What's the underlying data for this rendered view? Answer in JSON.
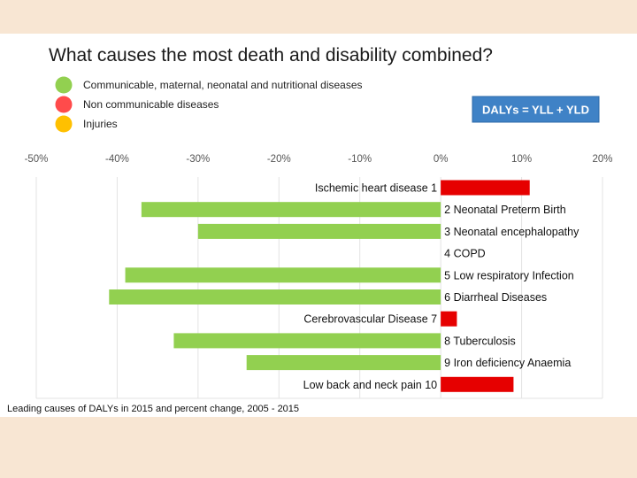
{
  "chart_data": {
    "type": "bar",
    "orientation": "horizontal",
    "title": "What causes the most death and disability combined?",
    "caption": "Leading causes of DALYs in 2015 and percent change, 2005 - 2015",
    "formula_box": "DALYs = YLL + YLD",
    "xlim": [
      -50,
      20
    ],
    "xticks": [
      -50,
      -40,
      -30,
      -20,
      -10,
      0,
      10,
      20
    ],
    "xtick_labels": [
      "-50%",
      "-40%",
      "-30%",
      "-20%",
      "-10%",
      "0%",
      "10%",
      "20%"
    ],
    "grid": true,
    "legend": [
      {
        "label": "Communicable, maternal, neonatal and nutritional diseases",
        "color": "#92d050"
      },
      {
        "label": "Non communicable diseases",
        "color": "#ff4b4b"
      },
      {
        "label": "Injuries",
        "color": "#ffc000"
      }
    ],
    "categories": [
      "Ischemic heart disease 1",
      "2 Neonatal Preterm Birth",
      "3 Neonatal encephalopathy",
      "4 COPD",
      "5 Low respiratory Infection",
      "6 Diarrheal Diseases",
      "Cerebrovascular Disease 7",
      "8 Tuberculosis",
      "9 Iron deficiency Anaemia",
      "Low back and neck pain 10"
    ],
    "values": [
      11,
      -37,
      -30,
      0,
      -39,
      -41,
      2,
      -33,
      -24,
      9
    ],
    "groups": [
      "ncd",
      "cmnn",
      "cmnn",
      "ncd",
      "cmnn",
      "cmnn",
      "ncd",
      "cmnn",
      "cmnn",
      "ncd"
    ],
    "group_colors": {
      "cmnn": "#92d050",
      "ncd": "#e60000"
    }
  }
}
